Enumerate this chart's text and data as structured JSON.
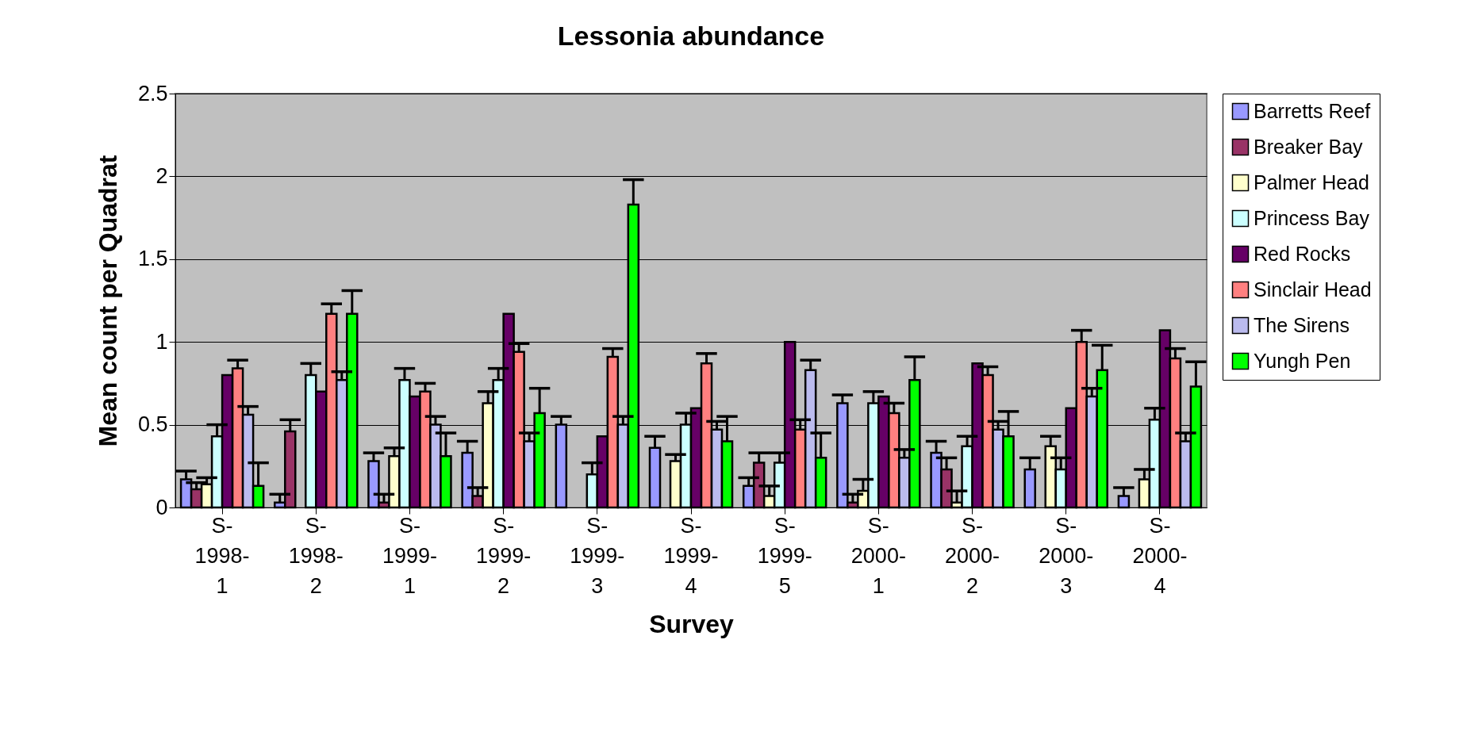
{
  "chart_data": {
    "type": "bar",
    "title": "Lessonia abundance",
    "xlabel": "Survey",
    "ylabel": "Mean count per Quadrat",
    "categories": [
      "S-1998-1",
      "S-1998-2",
      "S-1999-1",
      "S-1999-2",
      "S-1999-3",
      "S-1999-4",
      "S-1999-5",
      "S-2000-1",
      "S-2000-2",
      "S-2000-3",
      "S-2000-4"
    ],
    "ylim": [
      0,
      2.5
    ],
    "yticks": [
      {
        "value": 0,
        "label": "0"
      },
      0.5,
      {
        "value": 1,
        "label": "1"
      },
      1.5,
      {
        "value": 2,
        "label": "2"
      },
      2.5
    ],
    "grid": "y",
    "legend": "right",
    "series": [
      {
        "name": "Barretts Reef",
        "color": "#9999ff",
        "values": [
          0.17,
          0.03,
          0.28,
          0.33,
          0.5,
          0.36,
          0.13,
          0.63,
          0.33,
          0.23,
          0.07
        ],
        "errors": [
          [
            0.17,
            0.22
          ],
          [
            0.03,
            0.08
          ],
          [
            0.28,
            0.33
          ],
          [
            0.33,
            0.4
          ],
          [
            0.5,
            0.55
          ],
          [
            0.36,
            0.43
          ],
          [
            0.13,
            0.18
          ],
          [
            0.63,
            0.68
          ],
          [
            0.33,
            0.4
          ],
          [
            0.23,
            0.3
          ],
          [
            0.07,
            0.12
          ]
        ]
      },
      {
        "name": "Breaker Bay",
        "color": "#993366",
        "values": [
          0.11,
          0.46,
          0.03,
          0.07,
          null,
          null,
          0.27,
          0.03,
          0.23,
          null,
          null
        ],
        "errors": [
          [
            0.11,
            0.15
          ],
          [
            0.46,
            0.53
          ],
          [
            0.03,
            0.08
          ],
          [
            0.07,
            0.12
          ],
          null,
          null,
          [
            0.27,
            0.33
          ],
          [
            0.03,
            0.08
          ],
          [
            0.23,
            0.3
          ],
          null,
          null
        ]
      },
      {
        "name": "Palmer Head",
        "color": "#ffffcc",
        "values": [
          0.14,
          null,
          0.31,
          0.63,
          null,
          0.28,
          0.07,
          0.1,
          0.03,
          0.37,
          0.17
        ],
        "errors": [
          [
            0.14,
            0.18
          ],
          null,
          [
            0.31,
            0.36
          ],
          [
            0.63,
            0.7
          ],
          null,
          [
            0.28,
            0.32
          ],
          [
            0.07,
            0.13
          ],
          [
            0.1,
            0.17
          ],
          [
            0.03,
            0.1
          ],
          [
            0.37,
            0.43
          ],
          [
            0.17,
            0.23
          ]
        ]
      },
      {
        "name": "Princess Bay",
        "color": "#ccffff",
        "values": [
          0.43,
          0.8,
          0.77,
          0.77,
          0.2,
          0.5,
          0.27,
          0.63,
          0.37,
          0.23,
          0.53
        ],
        "errors": [
          [
            0.43,
            0.5
          ],
          [
            0.8,
            0.87
          ],
          [
            0.77,
            0.84
          ],
          [
            0.77,
            0.84
          ],
          [
            0.2,
            0.27
          ],
          [
            0.5,
            0.57
          ],
          [
            0.27,
            0.33
          ],
          [
            0.63,
            0.7
          ],
          [
            0.37,
            0.43
          ],
          [
            0.23,
            0.3
          ],
          [
            0.53,
            0.6
          ]
        ]
      },
      {
        "name": "Red Rocks",
        "color": "#660066",
        "values": [
          0.8,
          0.7,
          0.67,
          1.17,
          0.43,
          0.6,
          1.0,
          0.67,
          0.87,
          0.6,
          1.07
        ]
      },
      {
        "name": "Sinclair Head",
        "color": "#ff8080",
        "values": [
          0.84,
          1.17,
          0.7,
          0.94,
          0.91,
          0.87,
          0.47,
          0.57,
          0.8,
          1.0,
          0.9
        ],
        "errors": [
          [
            0.84,
            0.89
          ],
          [
            1.17,
            1.23
          ],
          [
            0.7,
            0.75
          ],
          [
            0.94,
            0.99
          ],
          [
            0.91,
            0.96
          ],
          [
            0.87,
            0.93
          ],
          [
            0.47,
            0.53
          ],
          [
            0.57,
            0.63
          ],
          [
            0.8,
            0.85
          ],
          [
            1.0,
            1.07
          ],
          [
            0.9,
            0.96
          ]
        ]
      },
      {
        "name": "The Sirens",
        "color": "#bbbbee",
        "values": [
          0.56,
          0.77,
          0.5,
          0.4,
          0.5,
          0.47,
          0.83,
          0.3,
          0.47,
          0.67,
          0.4
        ],
        "errors": [
          [
            0.56,
            0.61
          ],
          [
            0.77,
            0.82
          ],
          [
            0.5,
            0.55
          ],
          [
            0.4,
            0.45
          ],
          [
            0.5,
            0.55
          ],
          [
            0.47,
            0.52
          ],
          [
            0.83,
            0.89
          ],
          [
            0.3,
            0.35
          ],
          [
            0.47,
            0.52
          ],
          [
            0.67,
            0.72
          ],
          [
            0.4,
            0.45
          ]
        ]
      },
      {
        "name": "Yungh Pen",
        "color": "#00ff00",
        "values": [
          0.13,
          1.17,
          0.31,
          0.57,
          1.83,
          0.4,
          0.3,
          0.77,
          0.43,
          0.83,
          0.73
        ],
        "errors": [
          [
            0.13,
            0.27
          ],
          [
            1.17,
            1.31
          ],
          [
            0.31,
            0.45
          ],
          [
            0.57,
            0.72
          ],
          [
            1.83,
            1.98
          ],
          [
            0.4,
            0.55
          ],
          [
            0.3,
            0.45
          ],
          [
            0.77,
            0.91
          ],
          [
            0.43,
            0.58
          ],
          [
            0.83,
            0.98
          ],
          [
            0.73,
            0.88
          ]
        ]
      }
    ]
  }
}
